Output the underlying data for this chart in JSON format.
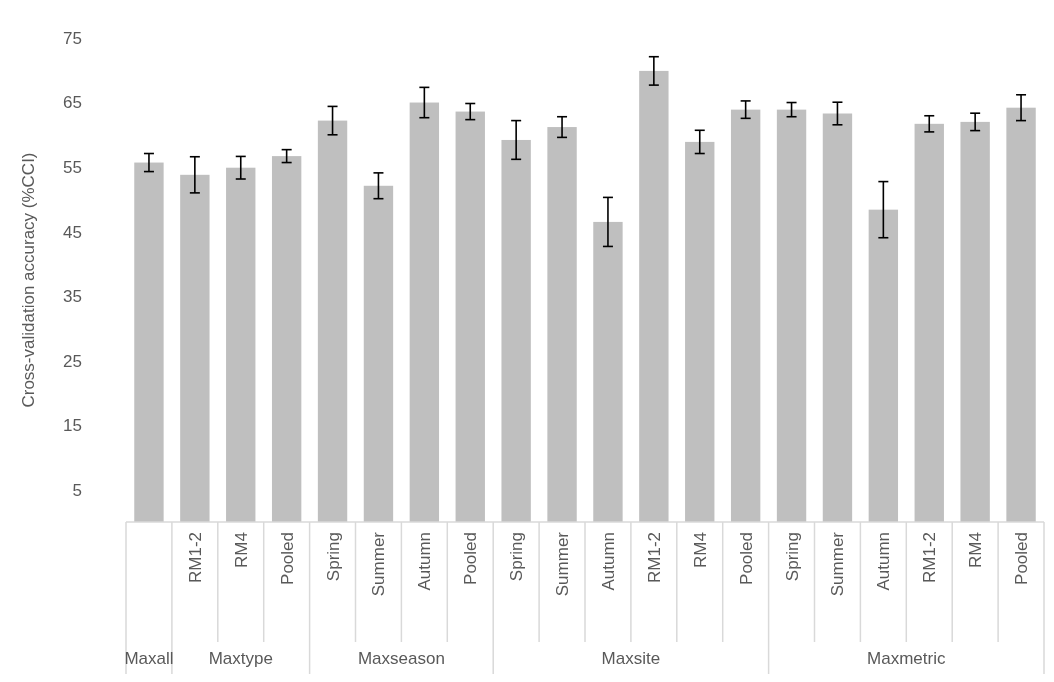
{
  "chart_data": {
    "type": "bar",
    "ylabel": "Cross-validation accuracy (%CCI)",
    "categories": [
      null,
      "RM1-2",
      "RM4",
      "Pooled",
      "Spring",
      "Summer",
      "Autumn",
      "Pooled",
      "Spring",
      "Summer",
      "Autumn",
      "RM1-2",
      "RM4",
      "Pooled",
      "Spring",
      "Summer",
      "Autumn",
      "RM1-2",
      "RM4",
      "Pooled"
    ],
    "values": [
      55.7,
      53.8,
      54.9,
      56.7,
      62.2,
      52.1,
      65.0,
      63.6,
      59.2,
      61.2,
      46.5,
      69.9,
      58.9,
      63.9,
      63.9,
      63.3,
      48.4,
      61.7,
      62.0,
      64.2
    ],
    "errors": [
      1.4,
      2.8,
      1.75,
      1.0,
      2.2,
      2.0,
      2.35,
      1.25,
      3.0,
      1.6,
      3.8,
      2.2,
      1.8,
      1.35,
      1.1,
      1.75,
      4.35,
      1.25,
      1.35,
      2.0
    ],
    "color": "#bfbfbf",
    "ylim": [
      0,
      75
    ],
    "yticks": [
      5,
      15,
      25,
      35,
      45,
      55,
      65,
      75
    ],
    "annotations": [
      "Maxall",
      "Maxtype",
      "Maxseason",
      "Maxsite",
      "Maxmetric"
    ]
  }
}
